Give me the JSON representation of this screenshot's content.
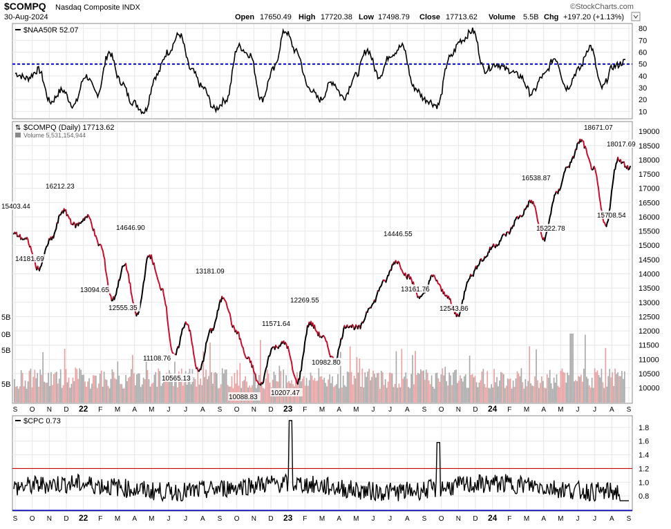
{
  "header": {
    "symbol": "$COMPQ",
    "name": "Nasdaq Composite INDX",
    "date": "30-Aug-2024",
    "open_label": "Open",
    "open": "17650.49",
    "high_label": "High",
    "high": "17720.38",
    "low_label": "Low",
    "low": "17498.79",
    "close_label": "Close",
    "close": "17713.62",
    "volume_label": "Volume",
    "volume": "5.5B",
    "chg_label": "Chg",
    "chg": "+197.20 (+1.13%)",
    "brand": "©StockCharts.com"
  },
  "colors": {
    "line": "#000000",
    "down": "#c8102e",
    "ref_blue": "#0000cc",
    "ref_red": "#cc0000",
    "vol_up": "#a9a9a9",
    "vol_down": "#e8a0a0",
    "grid": "#e6e6e6"
  },
  "chart_data": [
    {
      "type": "line",
      "title": "$NAA50R 52.07",
      "series": [
        {
          "name": "$NAA50R",
          "last": 52.07
        }
      ],
      "y_ticks": [
        10,
        20,
        30,
        40,
        50,
        60,
        70,
        80
      ],
      "ylim": [
        5,
        83
      ],
      "reference_line": 50,
      "points_by_month": [
        42,
        38,
        45,
        18,
        28,
        15,
        40,
        25,
        60,
        35,
        18,
        10,
        40,
        60,
        75,
        45,
        30,
        12,
        20,
        65,
        58,
        20,
        45,
        78,
        60,
        30,
        20,
        35,
        22,
        40,
        62,
        40,
        58,
        65,
        30,
        20,
        15,
        55,
        70,
        78,
        45,
        50,
        45,
        40,
        25,
        40,
        55,
        30,
        45,
        65,
        30,
        48,
        52
      ]
    },
    {
      "type": "line",
      "title": "$COMPQ (Daily) 17713.62",
      "subtitle": "Volume 5,531,154,944",
      "series": [
        {
          "name": "$COMPQ",
          "last": 17713.62
        }
      ],
      "y_ticks": [
        10000,
        10500,
        11000,
        11500,
        12000,
        12500,
        13000,
        13500,
        14000,
        14500,
        15000,
        15500,
        16000,
        16500,
        17000,
        17500,
        18000,
        18500,
        19000
      ],
      "ylim": [
        9700,
        19100
      ],
      "anchor_points": [
        [
          0,
          15403.44
        ],
        [
          1,
          15200
        ],
        [
          2,
          14181.69
        ],
        [
          3,
          15200
        ],
        [
          4,
          16212.23
        ],
        [
          5,
          15700
        ],
        [
          6,
          16000
        ],
        [
          7,
          15000
        ],
        [
          8,
          13094.65
        ],
        [
          9,
          14300
        ],
        [
          10,
          12555.35
        ],
        [
          11,
          14646.9
        ],
        [
          12,
          13500
        ],
        [
          13,
          11108.76
        ],
        [
          14,
          12300
        ],
        [
          15,
          10565.13
        ],
        [
          16,
          12000
        ],
        [
          17,
          13181.09
        ],
        [
          18,
          12000
        ],
        [
          19,
          11000
        ],
        [
          20,
          10088.83
        ],
        [
          21,
          11400
        ],
        [
          22,
          11571.64
        ],
        [
          23,
          10207.47
        ],
        [
          24,
          12269.55
        ],
        [
          25,
          11800
        ],
        [
          26,
          10982.8
        ],
        [
          27,
          12200
        ],
        [
          28,
          12100
        ],
        [
          29,
          12900
        ],
        [
          30,
          13700
        ],
        [
          31,
          14446.55
        ],
        [
          32,
          13900
        ],
        [
          33,
          13161.76
        ],
        [
          34,
          13900
        ],
        [
          35,
          13300
        ],
        [
          36,
          12543.86
        ],
        [
          37,
          13900
        ],
        [
          38,
          14500
        ],
        [
          39,
          15000
        ],
        [
          40,
          15400
        ],
        [
          41,
          16000
        ],
        [
          42,
          16538.87
        ],
        [
          43,
          15222.78
        ],
        [
          44,
          16800
        ],
        [
          45,
          17800
        ],
        [
          46,
          18671.07
        ],
        [
          47,
          17700
        ],
        [
          48,
          15708.54
        ],
        [
          49,
          18017.69
        ],
        [
          50,
          17713.62
        ]
      ],
      "labels": [
        "15403.44",
        "14181.69",
        "16212.23",
        "13094.65",
        "12555.35",
        "14646.90",
        "11108.76",
        "10565.13",
        "13181.09",
        "10088.83",
        "11571.64",
        "10207.47",
        "12269.55",
        "10982.80",
        "14446.55",
        "13161.76",
        "12543.86",
        "16538.87",
        "15222.78",
        "18671.07",
        "15708.54",
        "18017.69"
      ],
      "volume_ticks": [
        "5B",
        "0B",
        "5B",
        "5B"
      ],
      "x_months": [
        "S",
        "O",
        "N",
        "D",
        "22",
        "F",
        "M",
        "A",
        "M",
        "J",
        "J",
        "A",
        "S",
        "O",
        "N",
        "D",
        "23",
        "F",
        "M",
        "A",
        "M",
        "J",
        "J",
        "A",
        "S",
        "O",
        "N",
        "D",
        "24",
        "F",
        "M",
        "A",
        "M",
        "J",
        "J",
        "A",
        "S"
      ]
    },
    {
      "type": "line",
      "title": "$CPC 0.73",
      "series": [
        {
          "name": "$CPC",
          "last": 0.73
        }
      ],
      "y_ticks": [
        "0.8",
        "1.0",
        "1.2",
        "1.4",
        "1.6",
        "1.8"
      ],
      "ylim": [
        0.6,
        1.95
      ],
      "reference_line": 1.2,
      "spikes": [
        [
          0.45,
          1.9
        ],
        [
          0.69,
          1.58
        ]
      ]
    }
  ]
}
